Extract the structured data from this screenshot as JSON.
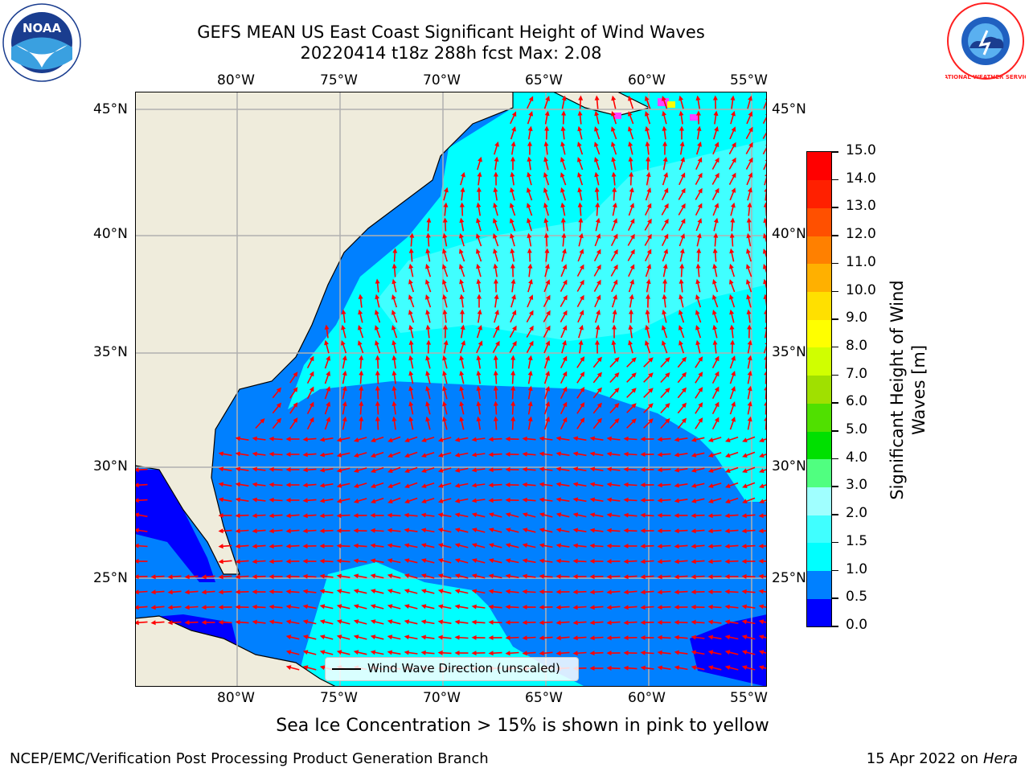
{
  "title": {
    "line1": "GEFS MEAN US East Coast Significant Height of Wind Waves",
    "line2": "20220414 t18z 288h fcst   Max: 2.08"
  },
  "logos": {
    "left": {
      "icon": "noaa-logo-icon",
      "text": "NOAA"
    },
    "right": {
      "icon": "national-weather-service-logo-icon",
      "text": "NATIONAL WEATHER SERVICE"
    }
  },
  "map": {
    "lon_labels": [
      "80°W",
      "75°W",
      "70°W",
      "65°W",
      "60°W",
      "55°W"
    ],
    "lat_labels": [
      "45°N",
      "40°N",
      "35°N",
      "30°N",
      "25°N"
    ],
    "colors": {
      "land": "#efecdc",
      "coast": "#000000",
      "grid": "#b0b0b0",
      "arrow": "#ff0000"
    }
  },
  "colorbar": {
    "title_line1": "Significant Height of Wind",
    "title_line2": "Waves [m]",
    "ticks": [
      "0.0",
      "0.5",
      "1.0",
      "1.5",
      "2.0",
      "3.0",
      "4.0",
      "5.0",
      "6.0",
      "7.0",
      "8.0",
      "9.0",
      "10.0",
      "11.0",
      "12.0",
      "13.0",
      "14.0",
      "15.0"
    ],
    "colors": [
      "#0000ff",
      "#0080ff",
      "#00ffff",
      "#40ffff",
      "#a0ffff",
      "#50ff80",
      "#00e000",
      "#50e000",
      "#a0e000",
      "#d0ff00",
      "#ffff00",
      "#ffe000",
      "#ffb000",
      "#ff8000",
      "#ff5000",
      "#ff2000",
      "#ff0000"
    ]
  },
  "legend": {
    "label": "Wind Wave Direction (unscaled)"
  },
  "notes": {
    "sea_ice": "Sea Ice Concentration > 15% is shown in pink to yellow",
    "footer_left": "NCEP/EMC/Verification Post Processing Product Generation Branch",
    "footer_date": "15 Apr 2022 on ",
    "footer_host": "Hera"
  }
}
